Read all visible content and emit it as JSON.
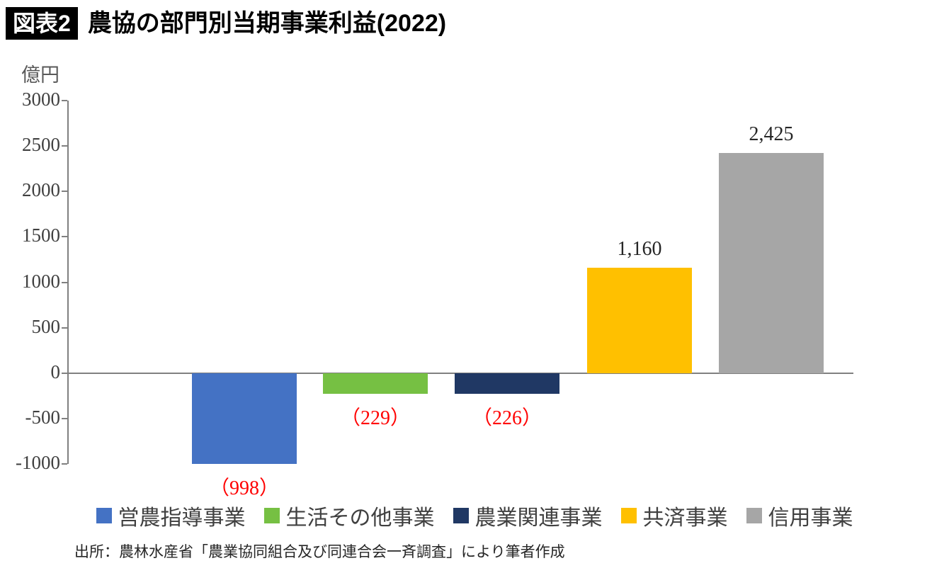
{
  "header": {
    "badge": "図表2",
    "title": "農協の部門別当期事業利益(2022)"
  },
  "chart_data": {
    "type": "bar",
    "title": "農協の部門別当期事業利益(2022)",
    "unit_label": "億円",
    "categories": [
      "営農指導事業",
      "生活その他事業",
      "農業関連事業",
      "共済事業",
      "信用事業"
    ],
    "values": [
      -998,
      -229,
      -226,
      1160,
      2425
    ],
    "bar_labels": [
      "（998）",
      "（229）",
      "（226）",
      "1,160",
      "2,425"
    ],
    "colors": [
      "#4472c4",
      "#76c043",
      "#203864",
      "#ffc000",
      "#a6a6a6"
    ],
    "y_ticks": [
      3000,
      2500,
      2000,
      1500,
      1000,
      500,
      0,
      -500,
      -1000
    ],
    "ylim": [
      -1000,
      3000
    ],
    "xlabel": "",
    "ylabel": "億円",
    "negative_label_color": "#ff0000",
    "positive_label_color": "#262626",
    "legend_position": "bottom",
    "grid": false
  },
  "source": "出所：農林水産省「農業協同組合及び同連合会一斉調査」により筆者作成"
}
